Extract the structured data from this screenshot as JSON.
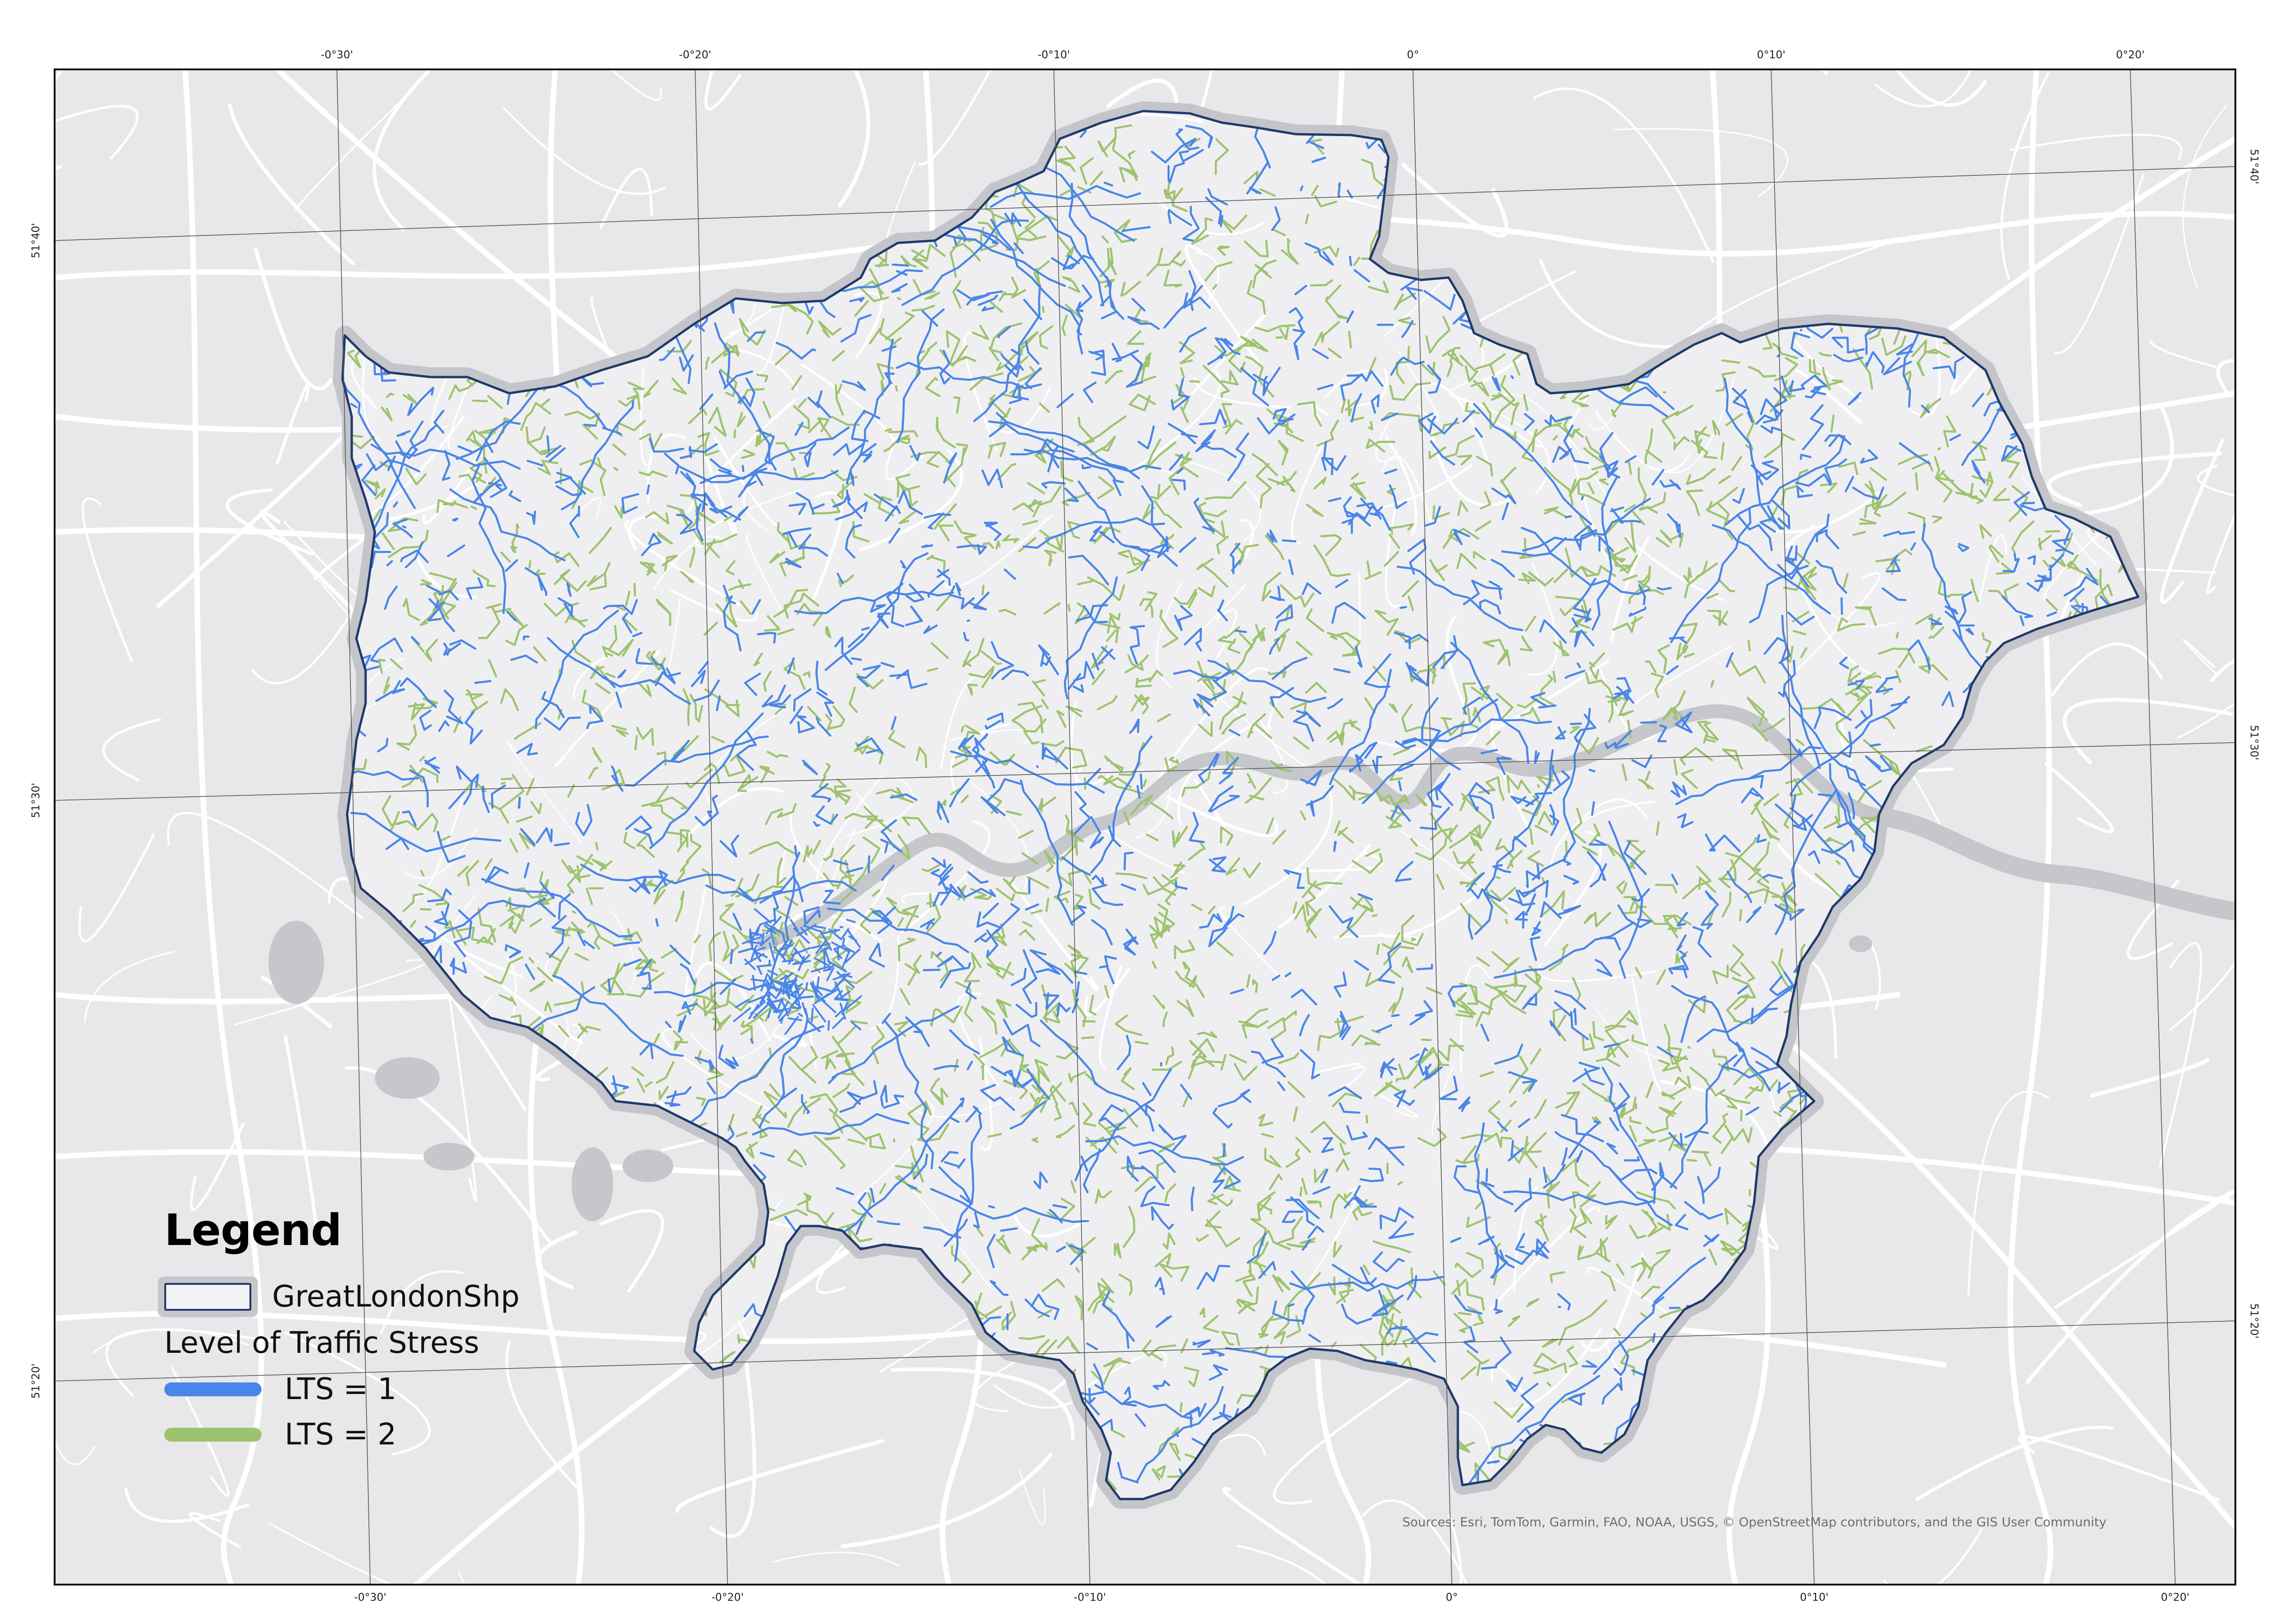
{
  "legend": {
    "title": "Legend",
    "boundary_label": "GreatLondonShp",
    "group_title": "Level of Traffic Stress",
    "items": [
      {
        "label": "LTS = 1",
        "color": "#4a86e8"
      },
      {
        "label": "LTS = 2",
        "color": "#9ec36f"
      }
    ]
  },
  "graticule": {
    "top_labels": [
      "-0°30'",
      "-0°20'",
      "-0°10'",
      "0°",
      "0°10'",
      "0°20'"
    ],
    "bottom_labels": [
      "-0°30'",
      "-0°20'",
      "-0°10'",
      "0°",
      "0°10'",
      "0°20'"
    ],
    "left_labels": [
      "51°40'",
      "51°30'",
      "51°20'"
    ],
    "right_labels": [
      "51°40'",
      "51°30'",
      "51°20'"
    ]
  },
  "attribution": "Sources: Esri, TomTom, Garmin, FAO, NOAA, USGS, © OpenStreetMap contributors, and the GIS User Community",
  "colors": {
    "basemap": "#e8e8ea",
    "roads": "#ffffff",
    "water": "#c5c7cb",
    "boundary": "#1f3a6b",
    "halo": "#c4c5ca",
    "lts1": "#4a86e8",
    "lts2": "#9ec36f"
  }
}
